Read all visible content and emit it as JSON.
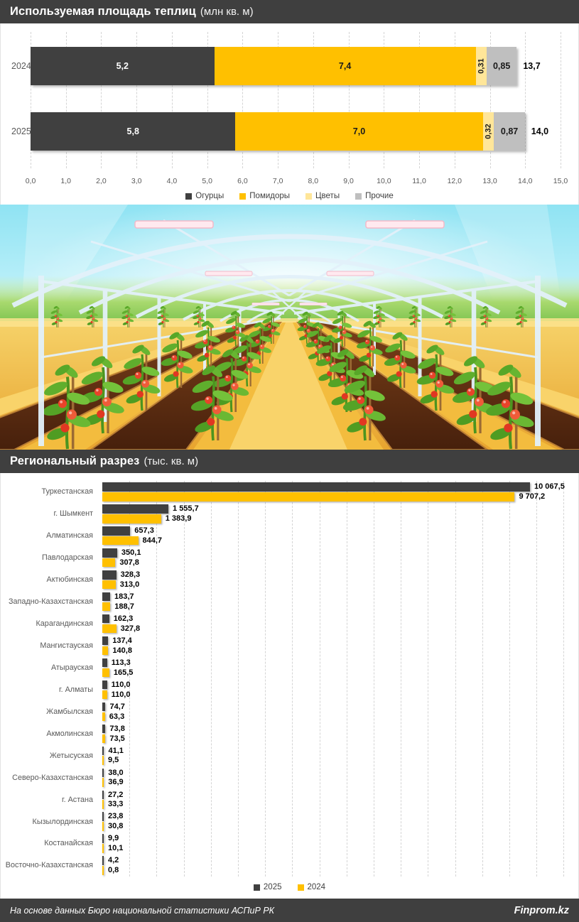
{
  "header1": {
    "title": "Используемая площадь теплиц",
    "unit": "(млн кв. м)"
  },
  "header2": {
    "title": "Региональный разрез",
    "unit": "(тыс. кв. м)"
  },
  "footer": {
    "source": "На основе данных Бюро национальной статистики АСПиР РК",
    "brand": "Finprom.kz"
  },
  "colors": {
    "dark": "#404040",
    "yellow": "#FFC000",
    "light_yellow": "#FFE699",
    "gray": "#BFBFBF",
    "header_bg": "#3f3f3f"
  },
  "chart_data": [
    {
      "type": "bar",
      "orientation": "horizontal-stacked",
      "title": "Используемая площадь теплиц (млн кв. м)",
      "categories": [
        "2024",
        "2025"
      ],
      "series": [
        {
          "name": "Огурцы",
          "color": "#404040",
          "values": [
            5.2,
            5.8
          ],
          "labels": [
            "5,2",
            "5,8"
          ],
          "label_color": "#ffffff"
        },
        {
          "name": "Помидоры",
          "color": "#FFC000",
          "values": [
            7.4,
            7.0
          ],
          "labels": [
            "7,4",
            "7,0"
          ],
          "label_color": "#1a1a1a"
        },
        {
          "name": "Цветы",
          "color": "#FFE699",
          "values": [
            0.31,
            0.32
          ],
          "labels": [
            "0,31",
            "0,32"
          ],
          "label_color": "#1a1a1a"
        },
        {
          "name": "Прочие",
          "color": "#BFBFBF",
          "values": [
            0.85,
            0.87
          ],
          "labels": [
            "0,85",
            "0,87"
          ],
          "label_color": "#1a1a1a"
        }
      ],
      "totals": [
        "13,7",
        "14,0"
      ],
      "xlim": [
        0,
        15
      ],
      "ticks": [
        "0,0",
        "1,0",
        "2,0",
        "3,0",
        "4,0",
        "5,0",
        "6,0",
        "7,0",
        "8,0",
        "9,0",
        "10,0",
        "11,0",
        "12,0",
        "13,0",
        "14,0",
        "15,0"
      ],
      "grid": true,
      "legend_position": "bottom",
      "legend": [
        "Огурцы",
        "Помидоры",
        "Цветы",
        "Прочие"
      ]
    },
    {
      "type": "bar",
      "orientation": "horizontal-grouped",
      "title": "Региональный разрез (тыс. кв. м)",
      "series_names": [
        "2025",
        "2024"
      ],
      "series_colors": [
        "#404040",
        "#FFC000"
      ],
      "xmax": 10067.5,
      "grid": true,
      "gridline_count": 17,
      "gridline_spacing_px": 38.2,
      "legend_position": "bottom",
      "rows": [
        {
          "region": "Туркестанская",
          "v2025": 10067.5,
          "v2024": 9707.2,
          "l2025": "10 067,5",
          "l2024": "9 707,2"
        },
        {
          "region": "г. Шымкент",
          "v2025": 1555.7,
          "v2024": 1383.9,
          "l2025": "1 555,7",
          "l2024": "1 383,9"
        },
        {
          "region": "Алматинская",
          "v2025": 657.3,
          "v2024": 844.7,
          "l2025": "657,3",
          "l2024": "844,7"
        },
        {
          "region": "Павлодарская",
          "v2025": 350.1,
          "v2024": 307.8,
          "l2025": "350,1",
          "l2024": "307,8"
        },
        {
          "region": "Актюбинская",
          "v2025": 328.3,
          "v2024": 313.0,
          "l2025": "328,3",
          "l2024": "313,0"
        },
        {
          "region": "Западно-Казахстанская",
          "v2025": 183.7,
          "v2024": 188.7,
          "l2025": "183,7",
          "l2024": "188,7"
        },
        {
          "region": "Карагандинская",
          "v2025": 162.3,
          "v2024": 327.8,
          "l2025": "162,3",
          "l2024": "327,8"
        },
        {
          "region": "Мангистауская",
          "v2025": 137.4,
          "v2024": 140.8,
          "l2025": "137,4",
          "l2024": "140,8"
        },
        {
          "region": "Атырауская",
          "v2025": 113.3,
          "v2024": 165.5,
          "l2025": "113,3",
          "l2024": "165,5"
        },
        {
          "region": "г. Алматы",
          "v2025": 110.0,
          "v2024": 110.0,
          "l2025": "110,0",
          "l2024": "110,0"
        },
        {
          "region": "Жамбылская",
          "v2025": 74.7,
          "v2024": 63.3,
          "l2025": "74,7",
          "l2024": "63,3"
        },
        {
          "region": "Акмолинская",
          "v2025": 73.8,
          "v2024": 73.5,
          "l2025": "73,8",
          "l2024": "73,5"
        },
        {
          "region": "Жетысуская",
          "v2025": 41.1,
          "v2024": 9.5,
          "l2025": "41,1",
          "l2024": "9,5"
        },
        {
          "region": "Северо-Казахстанская",
          "v2025": 38.0,
          "v2024": 36.9,
          "l2025": "38,0",
          "l2024": "36,9"
        },
        {
          "region": "г. Астана",
          "v2025": 27.2,
          "v2024": 33.3,
          "l2025": "27,2",
          "l2024": "33,3"
        },
        {
          "region": "Кызылординская",
          "v2025": 23.8,
          "v2024": 30.8,
          "l2025": "23,8",
          "l2024": "30,8"
        },
        {
          "region": "Костанайская",
          "v2025": 9.9,
          "v2024": 10.1,
          "l2025": "9,9",
          "l2024": "10,1"
        },
        {
          "region": "Восточно-Казахстанская",
          "v2025": 4.2,
          "v2024": 0.8,
          "l2025": "4,2",
          "l2024": "0,8"
        }
      ],
      "legend": [
        "2025",
        "2024"
      ]
    }
  ]
}
